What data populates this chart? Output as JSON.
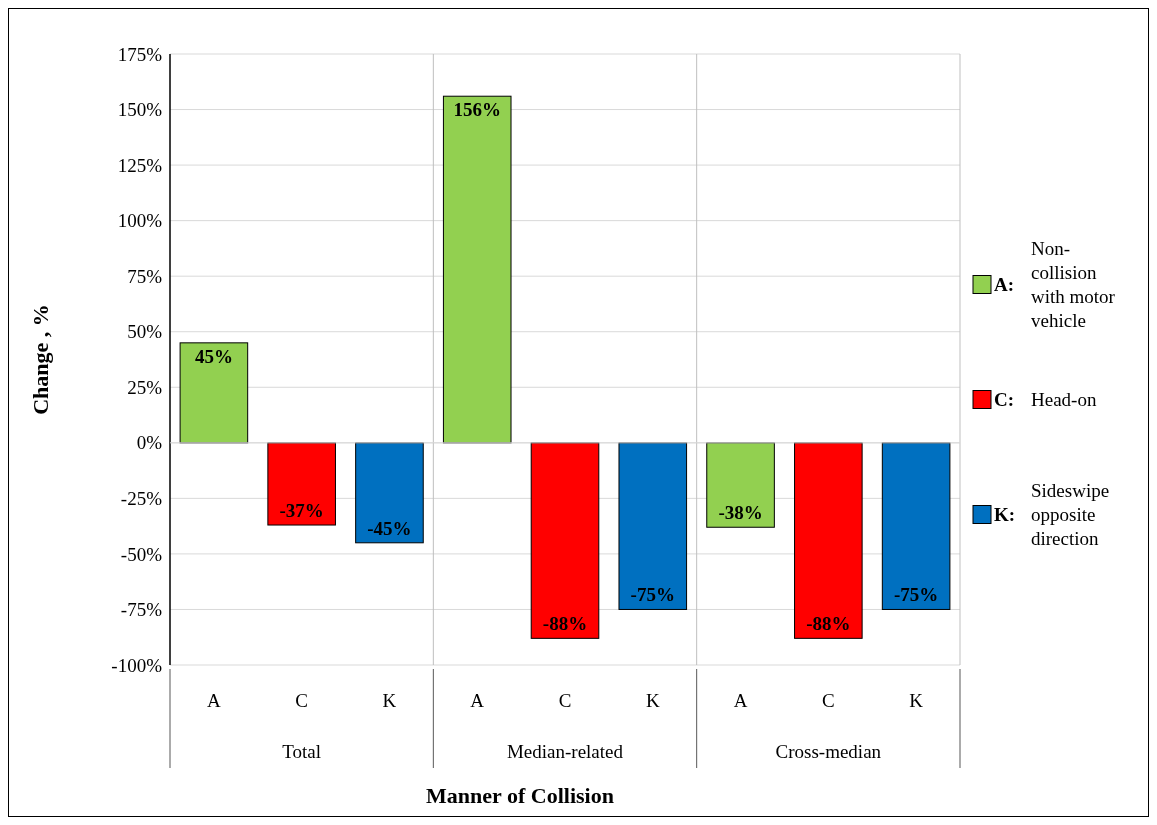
{
  "chart_data": {
    "type": "bar",
    "xlabel": "Manner of Collision",
    "ylabel": "Change , %",
    "categories": [
      "A",
      "C",
      "K",
      "A",
      "C",
      "K",
      "A",
      "C",
      "K"
    ],
    "series": [
      {
        "name": "A: Non-collision with motor vehicle",
        "color": "#92d050",
        "values": [
          45,
          null,
          null,
          156,
          null,
          null,
          -38,
          null,
          null
        ],
        "value_labels": [
          "45%",
          null,
          null,
          "156%",
          null,
          null,
          "-38%",
          null,
          null
        ]
      },
      {
        "name": "C: Head-on",
        "color": "#ff0000",
        "values": [
          null,
          -37,
          null,
          null,
          -88,
          null,
          null,
          -88,
          null
        ],
        "value_labels": [
          null,
          "-37%",
          null,
          null,
          "-88%",
          null,
          null,
          "-88%",
          null
        ]
      },
      {
        "name": "K: Sideswipe opposite direction",
        "color": "#0070c0",
        "values": [
          null,
          null,
          -45,
          null,
          null,
          -75,
          null,
          null,
          -75
        ],
        "value_labels": [
          null,
          null,
          "-45%",
          null,
          null,
          "-75%",
          null,
          null,
          "-75%"
        ]
      }
    ],
    "annotations": [
      "Total",
      "Median-related",
      "Cross-median"
    ],
    "ylim": [
      -100,
      175
    ],
    "yticks": [
      {
        "value": -100,
        "label": "-100%"
      },
      {
        "value": -75,
        "label": "-75%"
      },
      {
        "value": -50,
        "label": "-50%"
      },
      {
        "value": -25,
        "label": "-25%"
      },
      {
        "value": 0,
        "label": "0%"
      },
      {
        "value": 25,
        "label": "25%"
      },
      {
        "value": 50,
        "label": "50%"
      },
      {
        "value": 75,
        "label": "75%"
      },
      {
        "value": 100,
        "label": "100%"
      },
      {
        "value": 125,
        "label": "125%"
      },
      {
        "value": 150,
        "label": "150%"
      },
      {
        "value": 175,
        "label": "175%"
      }
    ],
    "grid": "y",
    "legend": "right"
  }
}
